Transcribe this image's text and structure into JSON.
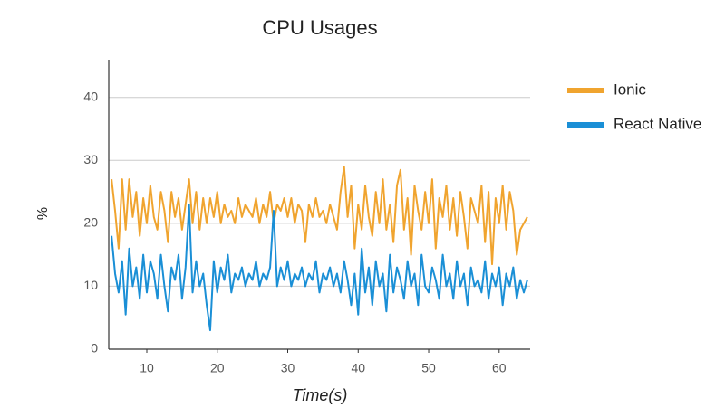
{
  "chart_data": {
    "type": "line",
    "title": "CPU Usages",
    "x_label": "Time(s)",
    "y_label": "%",
    "x": [
      5,
      5.5,
      6,
      6.5,
      7,
      7.5,
      8,
      8.5,
      9,
      9.5,
      10,
      10.5,
      11,
      11.5,
      12,
      12.5,
      13,
      13.5,
      14,
      14.5,
      15,
      15.5,
      16,
      16.5,
      17,
      17.5,
      18,
      18.5,
      19,
      19.5,
      20,
      20.5,
      21,
      21.5,
      22,
      22.5,
      23,
      23.5,
      24,
      24.5,
      25,
      25.5,
      26,
      26.5,
      27,
      27.5,
      28,
      28.5,
      29,
      29.5,
      30,
      30.5,
      31,
      31.5,
      32,
      32.5,
      33,
      33.5,
      34,
      34.5,
      35,
      35.5,
      36,
      36.5,
      37,
      37.5,
      38,
      38.5,
      39,
      39.5,
      40,
      40.5,
      41,
      41.5,
      42,
      42.5,
      43,
      43.5,
      44,
      44.5,
      45,
      45.5,
      46,
      46.5,
      47,
      47.5,
      48,
      48.5,
      49,
      49.5,
      50,
      50.5,
      51,
      51.5,
      52,
      52.5,
      53,
      53.5,
      54,
      54.5,
      55,
      55.5,
      56,
      56.5,
      57,
      57.5,
      58,
      58.5,
      59,
      59.5,
      60,
      60.5,
      61,
      61.5,
      62,
      62.5,
      63,
      63.5,
      64
    ],
    "series": [
      {
        "name": "Ionic",
        "color": "#f0a42f",
        "values": [
          27,
          22,
          16,
          27,
          19,
          27,
          21,
          25,
          18,
          24,
          20,
          26,
          21,
          19,
          25,
          22,
          17,
          25,
          21,
          24,
          19,
          23,
          27,
          20,
          25,
          19,
          24,
          20,
          24,
          21,
          25,
          20,
          23,
          21,
          22,
          20,
          24,
          21,
          23,
          22,
          21,
          24,
          20,
          23,
          21,
          25,
          20,
          23,
          22,
          24,
          21,
          24,
          20,
          23,
          22,
          17,
          23,
          21,
          24,
          21,
          22,
          20,
          23,
          21,
          19,
          25,
          29,
          21,
          26,
          16,
          23,
          19,
          26,
          21,
          18,
          25,
          20,
          27,
          19,
          23,
          17,
          26,
          28.5,
          19,
          24,
          15,
          26,
          22,
          19,
          25,
          20,
          27,
          16,
          24,
          21,
          26,
          19,
          24,
          18,
          25,
          21,
          16,
          24,
          22,
          20,
          26,
          17,
          25,
          13.5,
          24,
          20,
          26,
          19,
          25,
          22,
          15,
          19,
          20,
          21
        ]
      },
      {
        "name": "React Native",
        "color": "#1a8fd6",
        "values": [
          18,
          12,
          9,
          14,
          5.5,
          16,
          10,
          13,
          8,
          15,
          9,
          14,
          12,
          8,
          15,
          10,
          6,
          13,
          11,
          15,
          8,
          13,
          23,
          9,
          14,
          10,
          12,
          7,
          3,
          14,
          9,
          13,
          11,
          15,
          9,
          12,
          11,
          13,
          10,
          12,
          11,
          14,
          10,
          12,
          11,
          13,
          22,
          10,
          13,
          11,
          14,
          10,
          12,
          11,
          13,
          10,
          12,
          11,
          14,
          9,
          12,
          11,
          13,
          10,
          12,
          9,
          14,
          11,
          7,
          12,
          5.5,
          16,
          9,
          13,
          7,
          14,
          10,
          12,
          6,
          15,
          9,
          13,
          11,
          8,
          14,
          10,
          12,
          7,
          15,
          10,
          9,
          13,
          11,
          8,
          15,
          10,
          12,
          8,
          14,
          10,
          12,
          7,
          13,
          10,
          11,
          9,
          14,
          8,
          12,
          10,
          13,
          7,
          12,
          10,
          13,
          8,
          11,
          9,
          11
        ]
      }
    ],
    "xlim": [
      4.6,
      64.4
    ],
    "xticks": [
      10,
      20,
      30,
      40,
      50,
      60
    ],
    "ylim": [
      0,
      46
    ],
    "yticks": [
      0,
      10,
      20,
      30,
      40
    ],
    "grid": true,
    "legend": "right"
  }
}
